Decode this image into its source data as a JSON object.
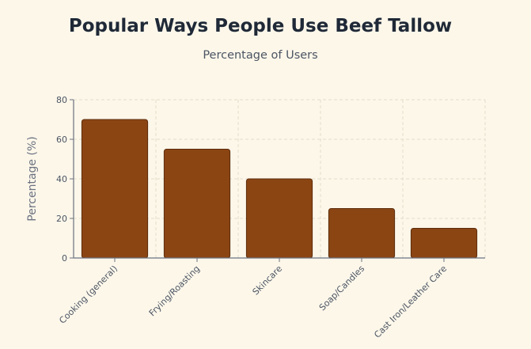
{
  "chart_data": {
    "type": "bar",
    "title": "Popular Ways People Use Beef Tallow",
    "subtitle": "Percentage of Users",
    "xlabel": "",
    "ylabel": "Percentage (%)",
    "categories": [
      "Cooking (general)",
      "Frying/Roasting",
      "Skincare",
      "Soap/Candles",
      "Cast Iron/Leather Care"
    ],
    "values": [
      70,
      55,
      40,
      25,
      15
    ],
    "ylim": [
      0,
      80
    ],
    "yticks": [
      0,
      20,
      40,
      60,
      80
    ],
    "grid": true,
    "colors": {
      "bar": "#8b4513",
      "bar_stroke": "#5c2d0c",
      "grid": "#e3dccb",
      "axis": "#6b7280",
      "tick_text": "#4b5563"
    }
  }
}
